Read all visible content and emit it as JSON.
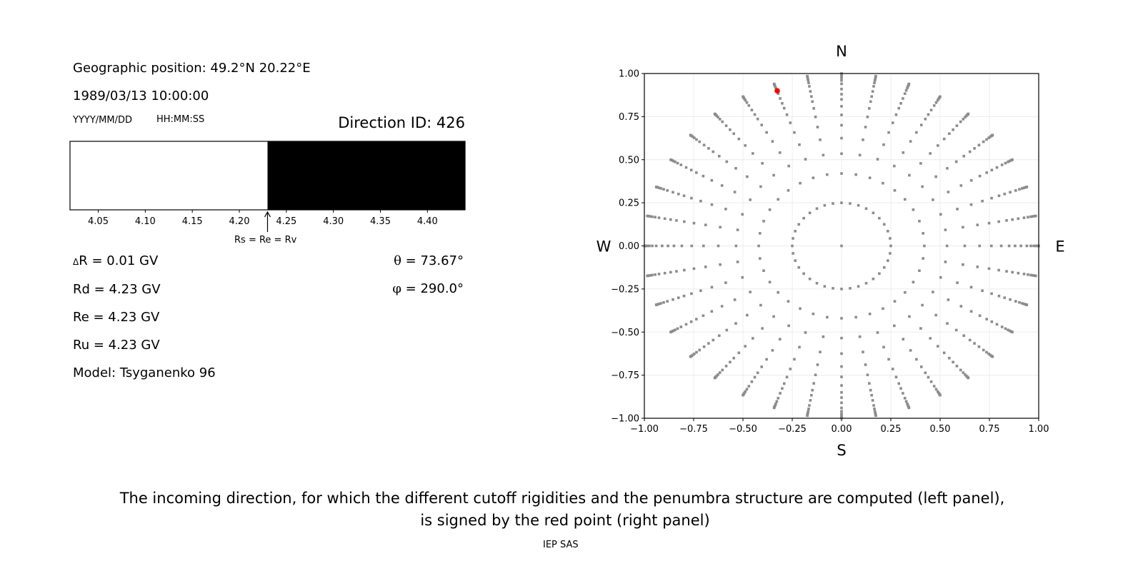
{
  "left_panel": {
    "geo_position": "Geographic position: 49.2°N 20.22°E",
    "datetime": "1989/03/13 10:00:00",
    "date_format": "YYYY/MM/DD",
    "time_format": "HH:MM:SS",
    "direction_id": "Direction ID: 426",
    "delta_r_symbol": "Δ",
    "delta_r": "R = 0.01 GV",
    "rd": "Rd = 4.23 GV",
    "re": "Re = 4.23 GV",
    "ru": "Ru = 4.23 GV",
    "model": "Model: Tsyganenko 96",
    "theta_symbol": "θ",
    "theta": " = 73.67°",
    "phi_symbol": "φ",
    "phi": " = 290.0°",
    "arrow_label": "Rs = Re = Rv"
  },
  "chart_data": [
    {
      "type": "bar",
      "title": "",
      "xlim": [
        4.02,
        4.44
      ],
      "xticks": [
        "4.05",
        "4.10",
        "4.15",
        "4.20",
        "4.25",
        "4.30",
        "4.35",
        "4.40"
      ],
      "segments": [
        {
          "from": 4.02,
          "to": 4.23,
          "color": "#ffffff",
          "state": "allowed"
        },
        {
          "from": 4.23,
          "to": 4.44,
          "color": "#000000",
          "state": "forbidden"
        }
      ],
      "marker_value": 4.23
    },
    {
      "type": "scatter",
      "xlim": [
        -1,
        1
      ],
      "ylim": [
        -1,
        1
      ],
      "xticks": [
        "−1.00",
        "−0.75",
        "−0.50",
        "−0.25",
        "0.00",
        "0.25",
        "0.50",
        "0.75",
        "1.00"
      ],
      "yticks": [
        "−1.00",
        "−0.75",
        "−0.50",
        "−0.25",
        "0.00",
        "0.25",
        "0.50",
        "0.75",
        "1.00"
      ],
      "grid": true,
      "compass": {
        "north": "N",
        "south": "S",
        "west": "W",
        "east": "E"
      },
      "direction_grid": {
        "azimuth_step_deg": 10,
        "radii": [
          0.25,
          0.42,
          0.535,
          0.625,
          0.7,
          0.76,
          0.81,
          0.85,
          0.88,
          0.91,
          0.94,
          0.96,
          0.975,
          0.985,
          0.993,
          0.998,
          1.0
        ],
        "center_point": [
          0,
          0
        ],
        "color": "#8c8c8c"
      },
      "highlight_point": {
        "x": -0.326,
        "y": 0.9,
        "color": "#ff0000"
      }
    }
  ],
  "caption": {
    "line1": "The incoming direction, for which the different cutoff rigidities and the penumbra structure are computed (left panel),",
    "line2": "is signed by the red point (right panel)",
    "credit": "IEP SAS"
  }
}
